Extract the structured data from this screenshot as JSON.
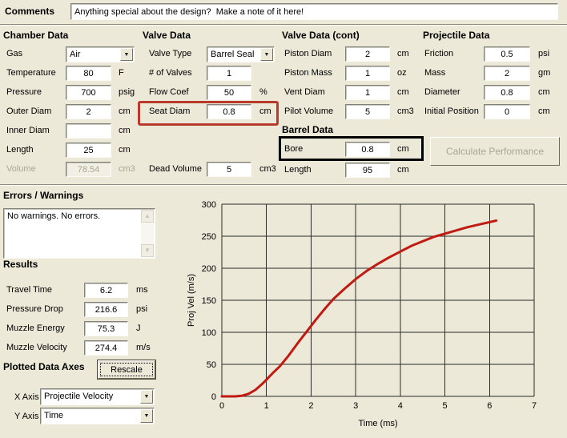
{
  "comments": {
    "label": "Comments",
    "value": "Anything special about the design?  Make a note of it here!"
  },
  "chamber": {
    "title": "Chamber Data",
    "rows": [
      {
        "label": "Gas",
        "value": "Air",
        "unit": "",
        "control": "dropdown"
      },
      {
        "label": "Temperature",
        "value": "80",
        "unit": "F"
      },
      {
        "label": "Pressure",
        "value": "700",
        "unit": "psig"
      },
      {
        "label": "Outer Diam",
        "value": "2",
        "unit": "cm"
      },
      {
        "label": "Inner Diam",
        "value": "",
        "unit": "cm"
      },
      {
        "label": "Length",
        "value": "25",
        "unit": "cm"
      },
      {
        "label": "Volume",
        "value": "78.54",
        "unit": "cm3",
        "disabled": true
      }
    ]
  },
  "valve": {
    "title": "Valve Data",
    "rows": [
      {
        "label": "Valve Type",
        "value": "Barrel Seal",
        "unit": "",
        "control": "dropdown"
      },
      {
        "label": "# of Valves",
        "value": "1",
        "unit": ""
      },
      {
        "label": "Flow Coef",
        "value": "50",
        "unit": "%"
      },
      {
        "label": "Seat Diam",
        "value": "0.8",
        "unit": "cm",
        "highlighted": "red-box"
      },
      {
        "label": "Dead Volume",
        "value": "5",
        "unit": "cm3"
      }
    ]
  },
  "valve_cont": {
    "title": "Valve Data (cont)",
    "rows": [
      {
        "label": "Piston Diam",
        "value": "2",
        "unit": "cm"
      },
      {
        "label": "Piston Mass",
        "value": "1",
        "unit": "oz"
      },
      {
        "label": "Vent Diam",
        "value": "1",
        "unit": "cm"
      },
      {
        "label": "Pilot Volume",
        "value": "5",
        "unit": "cm3"
      }
    ]
  },
  "barrel": {
    "title": "Barrel Data",
    "rows": [
      {
        "label": "Bore",
        "value": "0.8",
        "unit": "cm",
        "highlighted": "black-box"
      },
      {
        "label": "Length",
        "value": "95",
        "unit": "cm"
      }
    ]
  },
  "projectile": {
    "title": "Projectile Data",
    "rows": [
      {
        "label": "Friction",
        "value": "0.5",
        "unit": "psi"
      },
      {
        "label": "Mass",
        "value": "2",
        "unit": "gm"
      },
      {
        "label": "Diameter",
        "value": "0.8",
        "unit": "cm"
      },
      {
        "label": "Initial Position",
        "value": "0",
        "unit": "cm"
      }
    ],
    "calculate_button": "Calculate Performance",
    "calculate_disabled": true
  },
  "errors": {
    "title": "Errors / Warnings",
    "text": "No warnings.  No errors."
  },
  "results": {
    "title": "Results",
    "rows": [
      {
        "label": "Travel Time",
        "value": "6.2",
        "unit": "ms"
      },
      {
        "label": "Pressure Drop",
        "value": "216.6",
        "unit": "psi"
      },
      {
        "label": "Muzzle Energy",
        "value": "75.3",
        "unit": "J"
      },
      {
        "label": "Muzzle Velocity",
        "value": "274.4",
        "unit": "m/s"
      }
    ]
  },
  "plotted_axes": {
    "title": "Plotted Data Axes",
    "rescale_button": "Rescale",
    "x_axis_label": "X Axis",
    "x_axis_value": "Projectile Velocity",
    "y_axis_label": "Y Axis",
    "y_axis_value": "Time"
  },
  "colors": {
    "window_bg": "#ece9d8",
    "highlight_red": "#b93a2c",
    "highlight_black": "#000000",
    "disabled_text": "#a9a695"
  },
  "chart_data": {
    "type": "line",
    "title": "",
    "xlabel": "Time (ms)",
    "ylabel": "Proj Vel (m/s)",
    "xlim": [
      0,
      7
    ],
    "ylim": [
      0,
      300
    ],
    "xtick_step": 1,
    "ytick_step": 50,
    "grid": true,
    "grid_color": "#2a2a2a",
    "line_color": "#c01a12",
    "legend": "none",
    "series": [
      {
        "name": "Projectile Velocity",
        "points": [
          [
            0,
            0
          ],
          [
            0.3,
            0
          ],
          [
            0.45,
            1
          ],
          [
            0.6,
            4
          ],
          [
            0.75,
            10
          ],
          [
            0.9,
            19
          ],
          [
            1.0,
            26
          ],
          [
            1.15,
            37
          ],
          [
            1.3,
            47
          ],
          [
            1.5,
            64
          ],
          [
            1.7,
            83
          ],
          [
            1.9,
            101
          ],
          [
            2.1,
            119
          ],
          [
            2.3,
            136
          ],
          [
            2.5,
            152
          ],
          [
            2.75,
            168
          ],
          [
            3.0,
            183
          ],
          [
            3.25,
            196
          ],
          [
            3.5,
            207
          ],
          [
            3.75,
            217
          ],
          [
            4.0,
            226
          ],
          [
            4.25,
            235
          ],
          [
            4.5,
            242
          ],
          [
            4.75,
            249
          ],
          [
            5.0,
            254
          ],
          [
            5.25,
            259
          ],
          [
            5.5,
            264
          ],
          [
            5.75,
            268
          ],
          [
            6.0,
            272
          ],
          [
            6.15,
            274.4
          ]
        ]
      }
    ]
  }
}
